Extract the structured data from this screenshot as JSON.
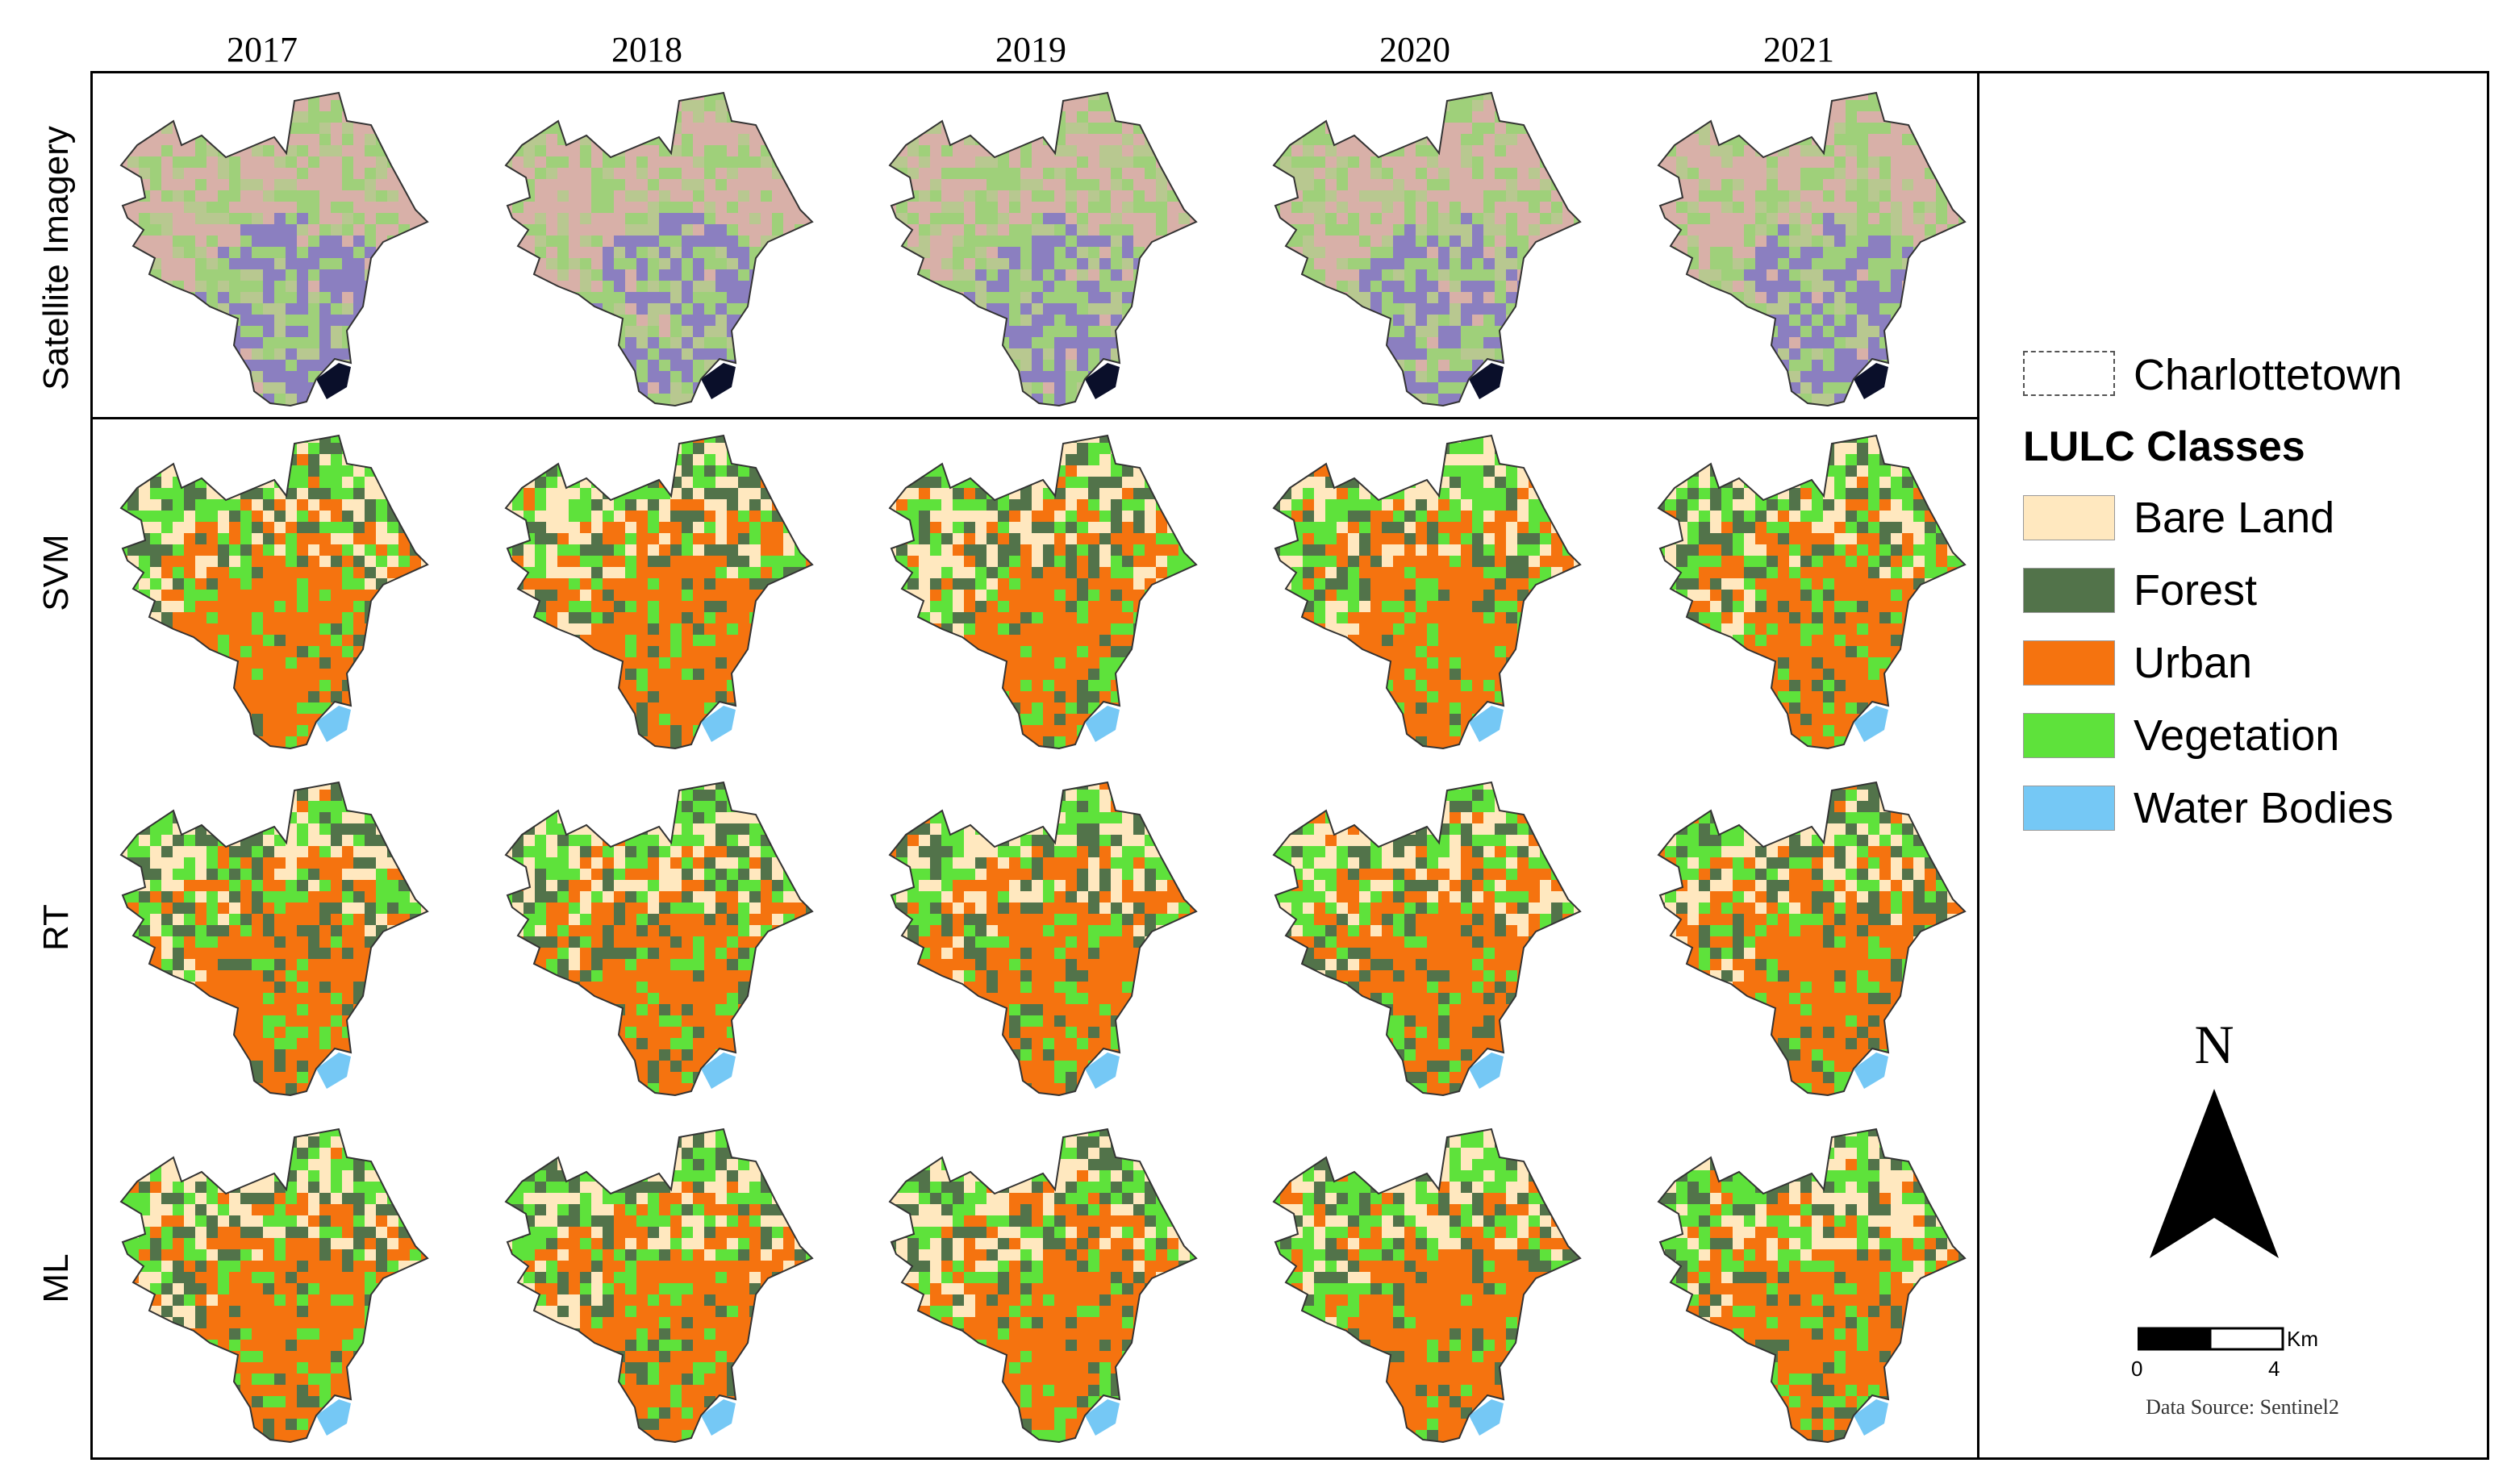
{
  "years": [
    "2017",
    "2018",
    "2019",
    "2020",
    "2021"
  ],
  "rows": [
    "Satellite Imagery",
    "SVM",
    "RT",
    "ML"
  ],
  "legend": {
    "boundary_label": "Charlottetown",
    "title": "LULC Classes",
    "classes": [
      {
        "label": "Bare Land",
        "color": "#ffe8bf"
      },
      {
        "label": "Forest",
        "color": "#52734a"
      },
      {
        "label": "Urban",
        "color": "#f5730f"
      },
      {
        "label": "Vegetation",
        "color": "#5ee23b"
      },
      {
        "label": "Water Bodies",
        "color": "#75c8f5"
      }
    ]
  },
  "north_label": "N",
  "scale": {
    "tick_0": "0",
    "tick_4": "4",
    "unit": "Km"
  },
  "data_source": "Data Source: Sentinel2",
  "colors": {
    "satellite_green": "#9fd07a",
    "satellite_purple": "#8b7fc0",
    "satellite_pink": "#d8b0a8",
    "frame": "#000000"
  }
}
